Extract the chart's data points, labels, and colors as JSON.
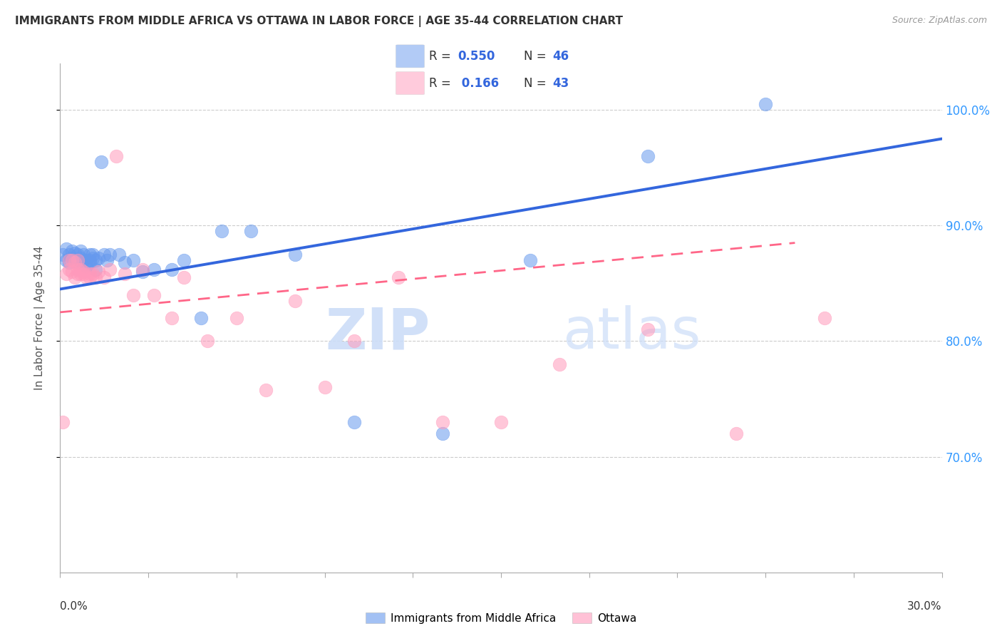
{
  "title": "IMMIGRANTS FROM MIDDLE AFRICA VS OTTAWA IN LABOR FORCE | AGE 35-44 CORRELATION CHART",
  "source": "Source: ZipAtlas.com",
  "ylabel_label": "In Labor Force | Age 35-44",
  "xmin": 0.0,
  "xmax": 0.3,
  "ymin": 0.6,
  "ymax": 1.04,
  "ytick_min": 0.7,
  "ytick_max": 1.0,
  "ytick_step": 0.1,
  "legend_blue_R": "0.550",
  "legend_blue_N": "46",
  "legend_pink_R": "0.166",
  "legend_pink_N": "43",
  "legend_blue_label": "Immigrants from Middle Africa",
  "legend_pink_label": "Ottawa",
  "blue_color": "#6699EE",
  "pink_color": "#FF99BB",
  "blue_line_color": "#3366DD",
  "pink_line_color": "#FF6688",
  "watermark_zip": "ZIP",
  "watermark_atlas": "atlas",
  "blue_x": [
    0.001,
    0.002,
    0.002,
    0.003,
    0.003,
    0.004,
    0.004,
    0.005,
    0.005,
    0.006,
    0.006,
    0.007,
    0.007,
    0.007,
    0.008,
    0.008,
    0.009,
    0.009,
    0.01,
    0.01,
    0.01,
    0.011,
    0.011,
    0.012,
    0.012,
    0.013,
    0.014,
    0.015,
    0.016,
    0.017,
    0.02,
    0.022,
    0.025,
    0.028,
    0.032,
    0.038,
    0.042,
    0.048,
    0.055,
    0.065,
    0.08,
    0.1,
    0.13,
    0.16,
    0.2,
    0.24
  ],
  "blue_y": [
    0.875,
    0.87,
    0.88,
    0.868,
    0.875,
    0.872,
    0.878,
    0.87,
    0.876,
    0.868,
    0.875,
    0.868,
    0.872,
    0.878,
    0.87,
    0.875,
    0.865,
    0.87,
    0.868,
    0.875,
    0.87,
    0.872,
    0.875,
    0.862,
    0.87,
    0.872,
    0.955,
    0.875,
    0.87,
    0.875,
    0.875,
    0.868,
    0.87,
    0.86,
    0.862,
    0.862,
    0.87,
    0.82,
    0.895,
    0.895,
    0.875,
    0.73,
    0.72,
    0.87,
    0.96,
    1.005
  ],
  "pink_x": [
    0.001,
    0.002,
    0.003,
    0.003,
    0.004,
    0.004,
    0.005,
    0.005,
    0.006,
    0.006,
    0.006,
    0.007,
    0.007,
    0.008,
    0.008,
    0.009,
    0.01,
    0.01,
    0.011,
    0.012,
    0.013,
    0.015,
    0.017,
    0.019,
    0.022,
    0.025,
    0.028,
    0.032,
    0.038,
    0.042,
    0.05,
    0.06,
    0.07,
    0.08,
    0.09,
    0.1,
    0.115,
    0.13,
    0.15,
    0.17,
    0.2,
    0.23,
    0.26
  ],
  "pink_y": [
    0.73,
    0.858,
    0.862,
    0.87,
    0.86,
    0.87,
    0.868,
    0.855,
    0.862,
    0.858,
    0.87,
    0.858,
    0.862,
    0.86,
    0.858,
    0.855,
    0.858,
    0.855,
    0.858,
    0.855,
    0.86,
    0.855,
    0.862,
    0.96,
    0.858,
    0.84,
    0.862,
    0.84,
    0.82,
    0.855,
    0.8,
    0.82,
    0.758,
    0.835,
    0.76,
    0.8,
    0.855,
    0.73,
    0.73,
    0.78,
    0.81,
    0.72,
    0.82
  ],
  "blue_trend_x0": 0.0,
  "blue_trend_x1": 0.3,
  "blue_trend_y0": 0.845,
  "blue_trend_y1": 0.975,
  "pink_trend_x0": 0.0,
  "pink_trend_x1": 0.25,
  "pink_trend_y0": 0.825,
  "pink_trend_y1": 0.885
}
